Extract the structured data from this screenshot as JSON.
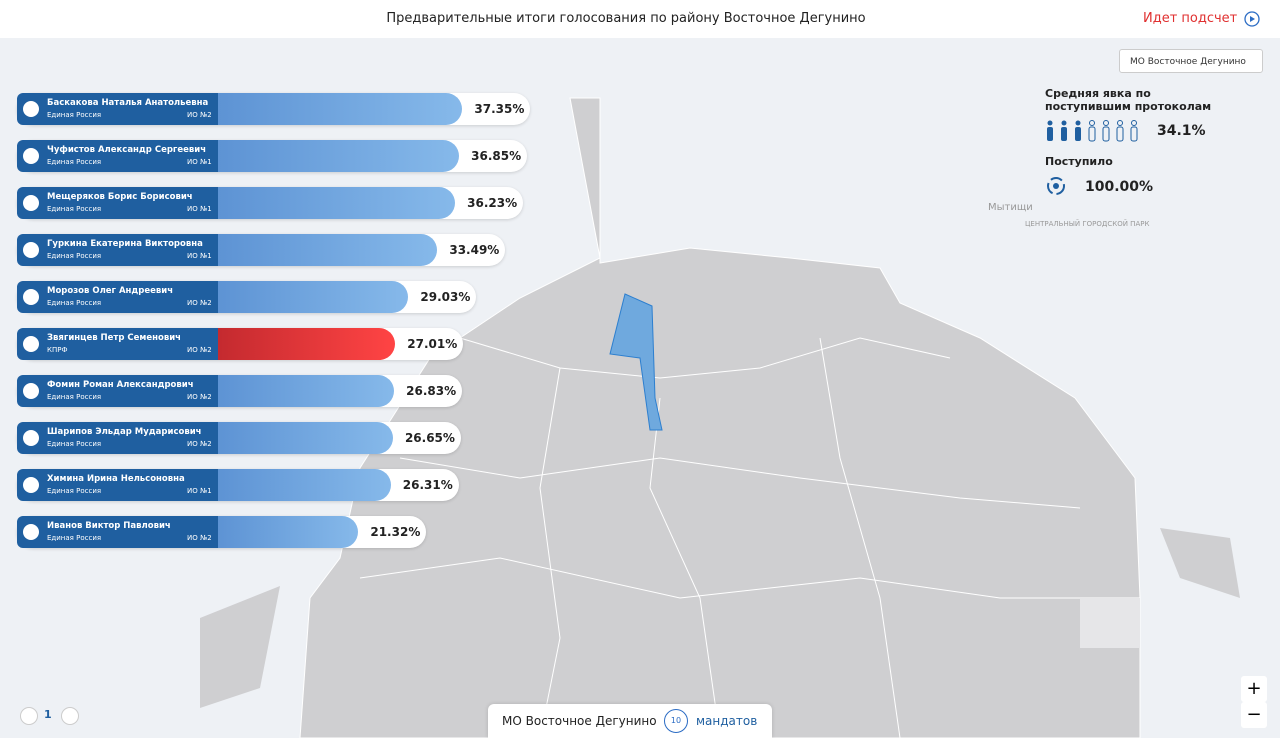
{
  "header": {
    "title": "Предварительные итоги голосования по району Восточное Дегунино",
    "status": "Идет подсчет"
  },
  "district_select": "МО Восточное Дегунино",
  "turnout": {
    "title": "Средняя явка по поступившим протоколам",
    "value_label": "34.1%",
    "received_title": "Поступило",
    "received_label": "100.00%"
  },
  "candidates": [
    {
      "name": "Баскакова Наталья Анатольевна",
      "party": "Единая Россия",
      "district": "ИО №2",
      "value": 37.35,
      "value_label": "37.35%"
    },
    {
      "name": "Чуфистов Александр Сергеевич",
      "party": "Единая Россия",
      "district": "ИО №1",
      "value": 36.85,
      "value_label": "36.85%"
    },
    {
      "name": "Мещеряков Борис Борисович",
      "party": "Единая Россия",
      "district": "ИО №1",
      "value": 36.23,
      "value_label": "36.23%"
    },
    {
      "name": "Гуркина Екатерина Викторовна",
      "party": "Единая Россия",
      "district": "ИО №1",
      "value": 33.49,
      "value_label": "33.49%"
    },
    {
      "name": "Морозов Олег Андреевич",
      "party": "Единая Россия",
      "district": "ИО №2",
      "value": 29.03,
      "value_label": "29.03%"
    },
    {
      "name": "Звягинцев Петр Семенович",
      "party": "КПРФ",
      "district": "ИО №2",
      "value": 27.01,
      "value_label": "27.01%"
    },
    {
      "name": "Фомин Роман Александрович",
      "party": "Единая Россия",
      "district": "ИО №2",
      "value": 26.83,
      "value_label": "26.83%"
    },
    {
      "name": "Шарипов Эльдар Мударисович",
      "party": "Единая Россия",
      "district": "ИО №2",
      "value": 26.65,
      "value_label": "26.65%"
    },
    {
      "name": "Химина Ирина Нельсоновна",
      "party": "Единая Россия",
      "district": "ИО №1",
      "value": 26.31,
      "value_label": "26.31%"
    },
    {
      "name": "Иванов Виктор Павлович",
      "party": "Единая Россия",
      "district": "ИО №2",
      "value": 21.32,
      "value_label": "21.32%"
    }
  ],
  "map_labels": [
    "Мытищи",
    "ЦЕНТРАЛЬНЫЙ ГОРОДСКОЙ ПАРК"
  ],
  "footer": {
    "district": "МО Восточное Дегунино",
    "mandates": "10",
    "mandates_label": "мандатов"
  },
  "pagination": {
    "page": "1"
  },
  "zoom": {
    "in": "+",
    "out": "−"
  }
}
